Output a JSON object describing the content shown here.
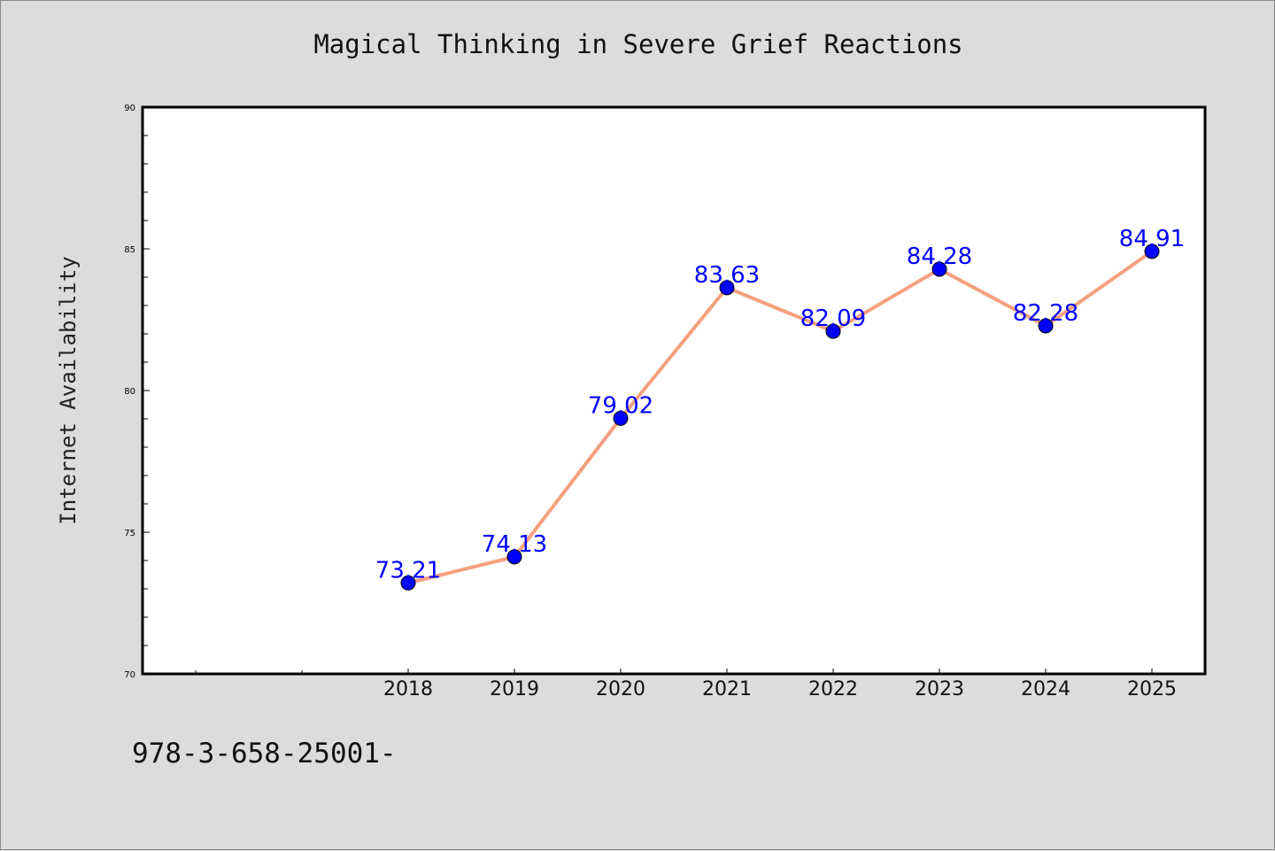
{
  "colors": {
    "background": "#dcdcdc",
    "plot_background": "#ffffff",
    "line": "#f4a07e",
    "marker": "#0000ff",
    "label": "#0000ff"
  },
  "footer_text": "978-3-658-25001-",
  "chart_data": {
    "type": "line",
    "title": "Magical Thinking in Severe Grief Reactions",
    "xlabel": "",
    "ylabel": "Internet Availability",
    "x": [
      "2018",
      "2019",
      "2020",
      "2021",
      "2022",
      "2023",
      "2024",
      "2025"
    ],
    "series": [
      {
        "values": [
          73.21,
          74.13,
          79.02,
          83.63,
          82.09,
          84.28,
          82.28,
          84.91
        ],
        "labels": [
          "73.21",
          "74.13",
          "79.02",
          "83.63",
          "82.09",
          "84.28",
          "82.28",
          "84.91"
        ]
      }
    ],
    "ylim": [
      70,
      90
    ],
    "yticks": [
      "70",
      "75",
      "80",
      "85",
      "90"
    ],
    "grid": false,
    "legend": "none"
  }
}
